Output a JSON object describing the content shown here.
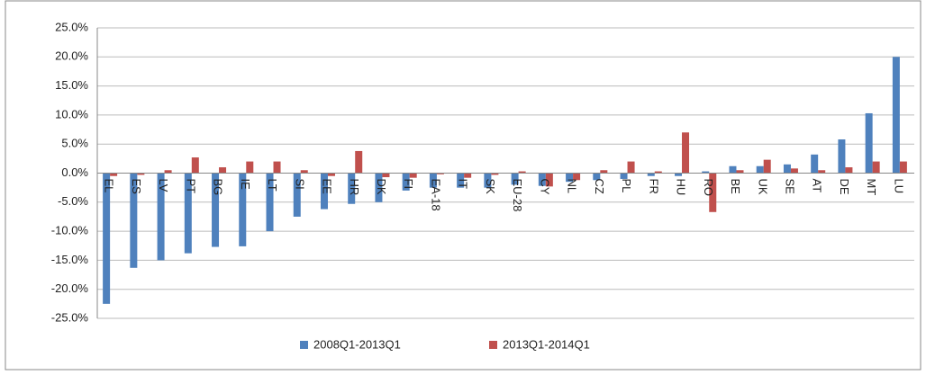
{
  "chart_data": {
    "type": "bar",
    "categories": [
      "EL",
      "ES",
      "LV",
      "PT",
      "BG",
      "IE",
      "LT",
      "SI",
      "EE",
      "HR",
      "DK",
      "FI",
      "EA-18",
      "IT",
      "SK",
      "EU-28",
      "CY",
      "NL",
      "CZ",
      "PL",
      "FR",
      "HU",
      "RO",
      "BE",
      "UK",
      "SE",
      "AT",
      "DE",
      "MT",
      "LU"
    ],
    "series": [
      {
        "name": "2008Q1-2013Q1",
        "color": "#4f81bd",
        "values": [
          -22.5,
          -16.3,
          -15,
          -13.8,
          -12.7,
          -12.6,
          -10,
          -7.5,
          -6.2,
          -5.3,
          -5,
          -3,
          -2.5,
          -2.5,
          -2.5,
          -2,
          -2.2,
          -1.5,
          -1.2,
          -1,
          -0.5,
          -0.5,
          0.3,
          1.2,
          1.2,
          1.5,
          3.2,
          5.8,
          10.3,
          20
        ]
      },
      {
        "name": "2013Q1-2014Q1",
        "color": "#c0504d",
        "values": [
          -0.5,
          -0.3,
          0.5,
          2.7,
          1,
          2,
          2,
          0.5,
          -0.5,
          3.8,
          -0.7,
          -0.8,
          -0.2,
          -0.8,
          -0.3,
          0.3,
          -2.3,
          -1.2,
          0.5,
          2,
          0.3,
          7,
          -6.7,
          0.5,
          2.3,
          0.8,
          0.5,
          1,
          2,
          2
        ]
      }
    ],
    "ylim": [
      -25,
      25
    ],
    "yticks": [
      {
        "value": -25,
        "label": "-25.0%"
      },
      {
        "value": -20,
        "label": "-20.0%"
      },
      {
        "value": -15,
        "label": "-15.0%"
      },
      {
        "value": -10,
        "label": "-10.0%"
      },
      {
        "value": -5,
        "label": "-5.0%"
      },
      {
        "value": 0,
        "label": "0.0%"
      },
      {
        "value": 5,
        "label": "5.0%"
      },
      {
        "value": 10,
        "label": "10.0%"
      },
      {
        "value": 15,
        "label": "15.0%"
      },
      {
        "value": 20,
        "label": "20.0%"
      },
      {
        "value": 25,
        "label": "25.0%"
      }
    ],
    "grid": true,
    "legend": "bottom"
  }
}
